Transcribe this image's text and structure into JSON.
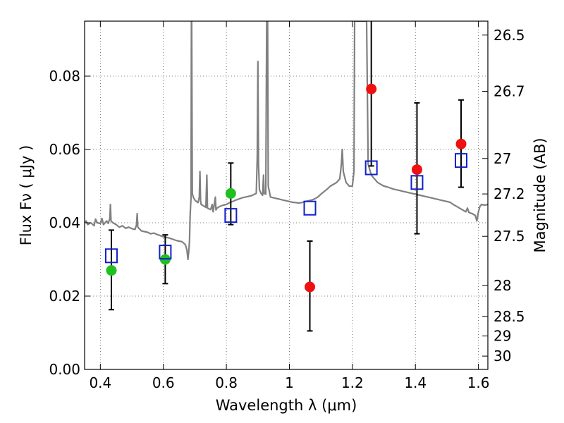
{
  "chart_data": {
    "type": "scatter",
    "xlabel": "Wavelength  λ (μm)",
    "ylabel": "Flux  Fν ( μJy )",
    "y2label": "Magnitude (AB)",
    "xlim": [
      0.35,
      1.63
    ],
    "ylim": [
      0.0,
      0.095
    ],
    "grid": true,
    "x_ticks": [
      {
        "value": 0.4,
        "label": "0.4"
      },
      {
        "value": 0.6,
        "label": "0.6"
      },
      {
        "value": 0.8,
        "label": "0.8"
      },
      {
        "value": 1.0,
        "label": "1"
      },
      {
        "value": 1.2,
        "label": "1.2"
      },
      {
        "value": 1.4,
        "label": "1.4"
      },
      {
        "value": 1.6,
        "label": "1.6"
      }
    ],
    "y_ticks": [
      {
        "value": 0.0,
        "label": "0.00"
      },
      {
        "value": 0.02,
        "label": "0.02"
      },
      {
        "value": 0.04,
        "label": "0.04"
      },
      {
        "value": 0.06,
        "label": "0.06"
      },
      {
        "value": 0.08,
        "label": "0.08"
      }
    ],
    "y2_ticks": [
      {
        "value": 26.5,
        "label": "26.5"
      },
      {
        "value": 26.7,
        "label": "26.7"
      },
      {
        "value": 27.0,
        "label": "27"
      },
      {
        "value": 27.2,
        "label": "27.2"
      },
      {
        "value": 27.5,
        "label": "27.5"
      },
      {
        "value": 28.0,
        "label": "28"
      },
      {
        "value": 28.5,
        "label": "28.5"
      },
      {
        "value": 29.0,
        "label": "29"
      },
      {
        "value": 30.0,
        "label": "30"
      }
    ],
    "series": [
      {
        "marker": "circle",
        "color": "#20c020",
        "points": [
          {
            "x": 0.435,
            "y": 0.027
          },
          {
            "x": 0.606,
            "y": 0.03
          },
          {
            "x": 0.814,
            "y": 0.048
          }
        ]
      },
      {
        "marker": "circle",
        "color": "#ee1111",
        "points": [
          {
            "x": 1.065,
            "y": 0.0225
          },
          {
            "x": 1.26,
            "y": 0.0765
          },
          {
            "x": 1.405,
            "y": 0.0545
          },
          {
            "x": 1.545,
            "y": 0.0615
          }
        ]
      },
      {
        "marker": "open-square",
        "color": "#1020cc",
        "points": [
          {
            "x": 0.435,
            "y": 0.031
          },
          {
            "x": 0.606,
            "y": 0.032
          },
          {
            "x": 0.814,
            "y": 0.042
          },
          {
            "x": 1.065,
            "y": 0.044
          },
          {
            "x": 1.26,
            "y": 0.055
          },
          {
            "x": 1.405,
            "y": 0.051
          },
          {
            "x": 1.545,
            "y": 0.057
          }
        ]
      }
    ],
    "error_bars": [
      {
        "x": 0.435,
        "low": 0.0163,
        "high": 0.038
      },
      {
        "x": 0.606,
        "low": 0.0234,
        "high": 0.0367
      },
      {
        "x": 0.814,
        "low": 0.0395,
        "high": 0.0563
      },
      {
        "x": 1.065,
        "low": 0.0105,
        "high": 0.035
      },
      {
        "x": 1.26,
        "low": 0.0555,
        "high": 0.095
      },
      {
        "x": 1.405,
        "low": 0.037,
        "high": 0.0727
      },
      {
        "x": 1.545,
        "low": 0.0497,
        "high": 0.0735
      }
    ],
    "spectrum": {
      "color": "#808080",
      "points": [
        [
          0.35,
          0.04
        ],
        [
          0.355,
          0.0405
        ],
        [
          0.36,
          0.0395
        ],
        [
          0.37,
          0.04
        ],
        [
          0.38,
          0.0392
        ],
        [
          0.385,
          0.041
        ],
        [
          0.39,
          0.04
        ],
        [
          0.4,
          0.0398
        ],
        [
          0.405,
          0.0412
        ],
        [
          0.41,
          0.0395
        ],
        [
          0.42,
          0.0405
        ],
        [
          0.425,
          0.0398
        ],
        [
          0.43,
          0.0412
        ],
        [
          0.432,
          0.045
        ],
        [
          0.434,
          0.0405
        ],
        [
          0.44,
          0.04
        ],
        [
          0.45,
          0.0395
        ],
        [
          0.46,
          0.0388
        ],
        [
          0.47,
          0.0392
        ],
        [
          0.48,
          0.0385
        ],
        [
          0.49,
          0.0388
        ],
        [
          0.5,
          0.0384
        ],
        [
          0.51,
          0.0382
        ],
        [
          0.515,
          0.0395
        ],
        [
          0.517,
          0.0425
        ],
        [
          0.519,
          0.0388
        ],
        [
          0.53,
          0.0378
        ],
        [
          0.54,
          0.0376
        ],
        [
          0.55,
          0.0374
        ],
        [
          0.56,
          0.037
        ],
        [
          0.57,
          0.0372
        ],
        [
          0.58,
          0.0368
        ],
        [
          0.59,
          0.0365
        ],
        [
          0.6,
          0.0362
        ],
        [
          0.61,
          0.036
        ],
        [
          0.62,
          0.0358
        ],
        [
          0.63,
          0.0355
        ],
        [
          0.64,
          0.0352
        ],
        [
          0.65,
          0.035
        ],
        [
          0.66,
          0.0348
        ],
        [
          0.67,
          0.034
        ],
        [
          0.675,
          0.0325
        ],
        [
          0.678,
          0.03
        ],
        [
          0.681,
          0.0325
        ],
        [
          0.683,
          0.035
        ],
        [
          0.685,
          0.042
        ],
        [
          0.688,
          0.047
        ],
        [
          0.689,
          0.095
        ],
        [
          0.69,
          0.095
        ],
        [
          0.692,
          0.048
        ],
        [
          0.695,
          0.047
        ],
        [
          0.7,
          0.0462
        ],
        [
          0.705,
          0.0458
        ],
        [
          0.71,
          0.0455
        ],
        [
          0.714,
          0.047
        ],
        [
          0.716,
          0.054
        ],
        [
          0.718,
          0.046
        ],
        [
          0.72,
          0.045
        ],
        [
          0.73,
          0.0445
        ],
        [
          0.735,
          0.0442
        ],
        [
          0.738,
          0.053
        ],
        [
          0.74,
          0.044
        ],
        [
          0.745,
          0.0438
        ],
        [
          0.75,
          0.0436
        ],
        [
          0.755,
          0.045
        ],
        [
          0.758,
          0.043
        ],
        [
          0.76,
          0.044
        ],
        [
          0.765,
          0.047
        ],
        [
          0.767,
          0.0435
        ],
        [
          0.77,
          0.044
        ],
        [
          0.78,
          0.0445
        ],
        [
          0.79,
          0.0448
        ],
        [
          0.8,
          0.045
        ],
        [
          0.81,
          0.0455
        ],
        [
          0.82,
          0.0458
        ],
        [
          0.83,
          0.0462
        ],
        [
          0.84,
          0.0465
        ],
        [
          0.85,
          0.0468
        ],
        [
          0.86,
          0.047
        ],
        [
          0.87,
          0.0472
        ],
        [
          0.88,
          0.0474
        ],
        [
          0.89,
          0.0478
        ],
        [
          0.895,
          0.048
        ],
        [
          0.898,
          0.058
        ],
        [
          0.9,
          0.084
        ],
        [
          0.902,
          0.056
        ],
        [
          0.905,
          0.049
        ],
        [
          0.91,
          0.048
        ],
        [
          0.915,
          0.0475
        ],
        [
          0.918,
          0.053
        ],
        [
          0.92,
          0.048
        ],
        [
          0.925,
          0.0478
        ],
        [
          0.928,
          0.095
        ],
        [
          0.931,
          0.095
        ],
        [
          0.933,
          0.05
        ],
        [
          0.94,
          0.047
        ],
        [
          0.95,
          0.0468
        ],
        [
          0.96,
          0.0466
        ],
        [
          0.97,
          0.0464
        ],
        [
          0.98,
          0.0462
        ],
        [
          0.99,
          0.046
        ],
        [
          1.0,
          0.0458
        ],
        [
          1.01,
          0.0456
        ],
        [
          1.02,
          0.0455
        ],
        [
          1.03,
          0.0454
        ],
        [
          1.04,
          0.0455
        ],
        [
          1.05,
          0.0458
        ],
        [
          1.06,
          0.046
        ],
        [
          1.07,
          0.0462
        ],
        [
          1.08,
          0.0465
        ],
        [
          1.09,
          0.047
        ],
        [
          1.1,
          0.0478
        ],
        [
          1.11,
          0.0485
        ],
        [
          1.12,
          0.0492
        ],
        [
          1.13,
          0.05
        ],
        [
          1.14,
          0.0505
        ],
        [
          1.15,
          0.051
        ],
        [
          1.16,
          0.052
        ],
        [
          1.165,
          0.056
        ],
        [
          1.168,
          0.06
        ],
        [
          1.171,
          0.054
        ],
        [
          1.18,
          0.051
        ],
        [
          1.19,
          0.05
        ],
        [
          1.2,
          0.05
        ],
        [
          1.205,
          0.054
        ],
        [
          1.207,
          0.095
        ],
        [
          1.245,
          0.095
        ],
        [
          1.25,
          0.056
        ],
        [
          1.26,
          0.053
        ],
        [
          1.27,
          0.052
        ],
        [
          1.28,
          0.051
        ],
        [
          1.29,
          0.0505
        ],
        [
          1.3,
          0.05
        ],
        [
          1.31,
          0.0498
        ],
        [
          1.32,
          0.0495
        ],
        [
          1.33,
          0.0492
        ],
        [
          1.34,
          0.049
        ],
        [
          1.35,
          0.0488
        ],
        [
          1.36,
          0.0486
        ],
        [
          1.37,
          0.0484
        ],
        [
          1.38,
          0.0482
        ],
        [
          1.39,
          0.048
        ],
        [
          1.4,
          0.0478
        ],
        [
          1.41,
          0.0476
        ],
        [
          1.42,
          0.0474
        ],
        [
          1.43,
          0.0472
        ],
        [
          1.44,
          0.047
        ],
        [
          1.45,
          0.0468
        ],
        [
          1.46,
          0.0466
        ],
        [
          1.47,
          0.0464
        ],
        [
          1.48,
          0.0462
        ],
        [
          1.49,
          0.046
        ],
        [
          1.5,
          0.0458
        ],
        [
          1.51,
          0.0456
        ],
        [
          1.52,
          0.045
        ],
        [
          1.53,
          0.0445
        ],
        [
          1.54,
          0.044
        ],
        [
          1.55,
          0.0435
        ],
        [
          1.56,
          0.043
        ],
        [
          1.565,
          0.044
        ],
        [
          1.57,
          0.0428
        ],
        [
          1.58,
          0.0425
        ],
        [
          1.59,
          0.042
        ],
        [
          1.595,
          0.0405
        ],
        [
          1.6,
          0.043
        ],
        [
          1.605,
          0.0445
        ],
        [
          1.61,
          0.045
        ],
        [
          1.62,
          0.0448
        ],
        [
          1.63,
          0.045
        ]
      ]
    }
  }
}
